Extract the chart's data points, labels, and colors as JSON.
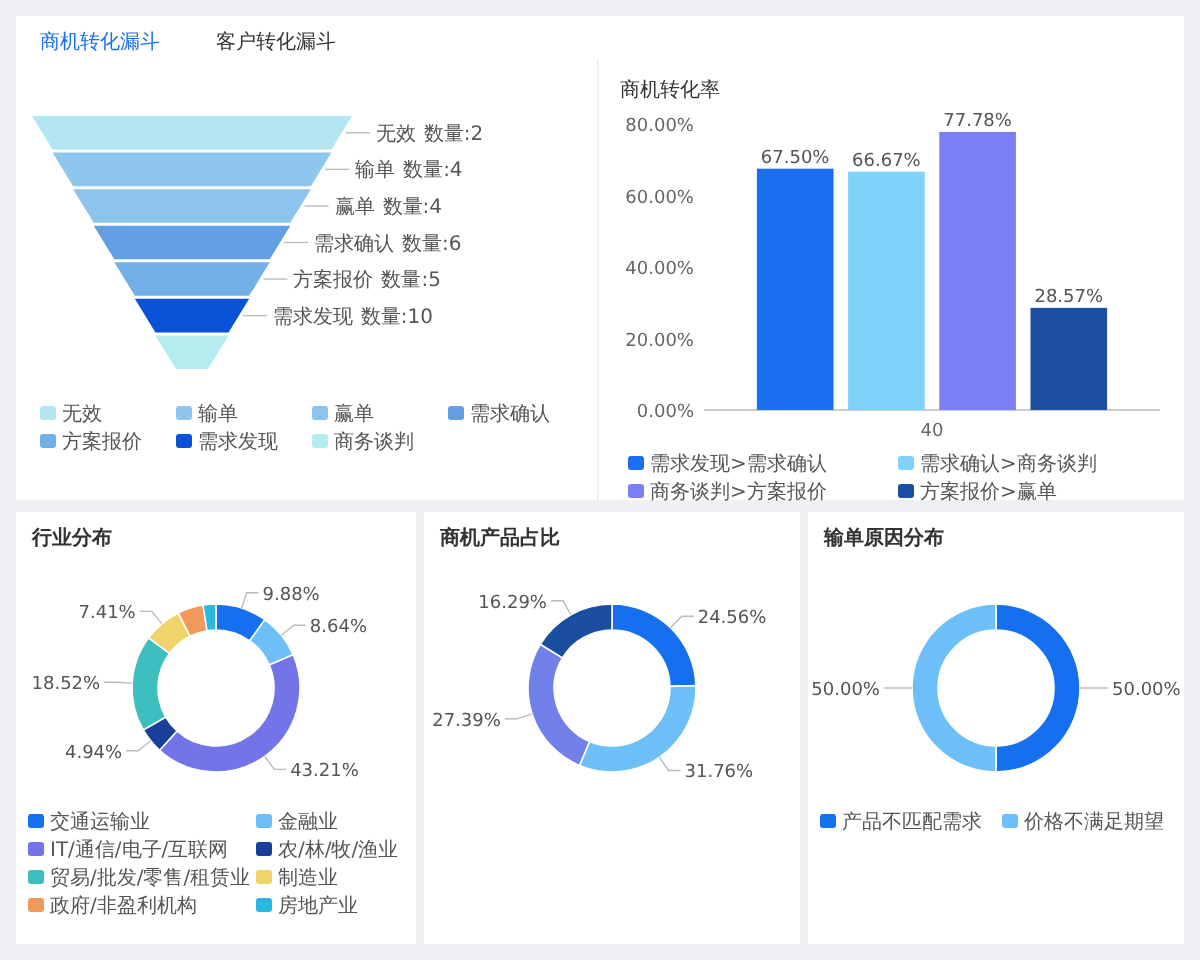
{
  "chart_data": [
    {
      "type": "other",
      "annotations": [
        "商机转化漏斗",
        "客户转化漏斗"
      ],
      "categories": [
        "无效",
        "输单",
        "赢单",
        "需求确认",
        "方案报价",
        "需求发现",
        "商务谈判"
      ],
      "values": [
        2,
        4,
        4,
        6,
        5,
        10,
        null
      ],
      "value_labels": [
        "数量:2",
        "数量:4",
        "数量:4",
        "数量:6",
        "数量:5",
        "数量:10",
        null
      ],
      "colors": [
        "#b3e5f2",
        "#8fc6ee",
        "#8cc4ee",
        "#62a0e3",
        "#74b0e8",
        "#0a52d6",
        "#b5ecf0"
      ]
    },
    {
      "type": "bar",
      "title": "商机转化率",
      "categories": [
        "40"
      ],
      "ylim": [
        0,
        80
      ],
      "yticks": [
        {
          "value": 0,
          "label": "0.00%"
        },
        {
          "value": 20,
          "label": "20.00%"
        },
        {
          "value": 40,
          "label": "40.00%"
        },
        {
          "value": 60,
          "label": "60.00%"
        },
        {
          "value": 80,
          "label": "80.00%"
        }
      ],
      "legend": "bottom",
      "series": [
        {
          "name": "需求发现>需求确认",
          "color": "#1a6ff0",
          "values": [
            67.5
          ],
          "value_labels": [
            "67.50%"
          ]
        },
        {
          "name": "需求确认>商务谈判",
          "color": "#7fd3fb",
          "values": [
            66.67
          ],
          "value_labels": [
            "66.67%"
          ]
        },
        {
          "name": "商务谈判>方案报价",
          "color": "#7b7ff5",
          "values": [
            77.78
          ],
          "value_labels": [
            "77.78%"
          ]
        },
        {
          "name": "方案报价>赢单",
          "color": "#1c4fa3",
          "values": [
            28.57
          ],
          "value_labels": [
            "28.57%"
          ]
        }
      ]
    },
    {
      "type": "donut",
      "title": "行业分布",
      "categories": [
        "交通运输业",
        "金融业",
        "IT/通信/电子/互联网",
        "农/林/牧/渔业",
        "贸易/批发/零售/租赁业",
        "制造业",
        "政府/非盈利机构",
        "房地产业"
      ],
      "values": [
        9.88,
        8.64,
        43.21,
        4.94,
        18.52,
        7.41,
        4.94,
        2.47
      ],
      "value_labels": [
        "9.88%",
        "8.64%",
        "43.21%",
        "4.94%",
        "18.52%",
        "7.41%",
        null,
        null
      ],
      "colors": [
        "#1570ef",
        "#6cc0f7",
        "#7274e8",
        "#1a3f9a",
        "#3dbfc0",
        "#f0d36a",
        "#ef9a5a",
        "#2ab7e0"
      ],
      "legend": "bottom"
    },
    {
      "type": "donut",
      "title": "商机产品占比",
      "categories": [
        null,
        null,
        null,
        null
      ],
      "values": [
        24.56,
        31.76,
        27.39,
        16.29
      ],
      "value_labels": [
        "24.56%",
        "31.76%",
        "27.39%",
        "16.29%"
      ],
      "colors": [
        "#1570ef",
        "#6cc0f7",
        "#7280ea",
        "#1a4e9e"
      ]
    },
    {
      "type": "donut",
      "title": "输单原因分布",
      "categories": [
        "产品不匹配需求",
        "价格不满足期望"
      ],
      "values": [
        50,
        50
      ],
      "value_labels": [
        "50.00%",
        "50.00%"
      ],
      "colors": [
        "#1570ef",
        "#6cc0f7"
      ],
      "legend": "bottom"
    }
  ]
}
